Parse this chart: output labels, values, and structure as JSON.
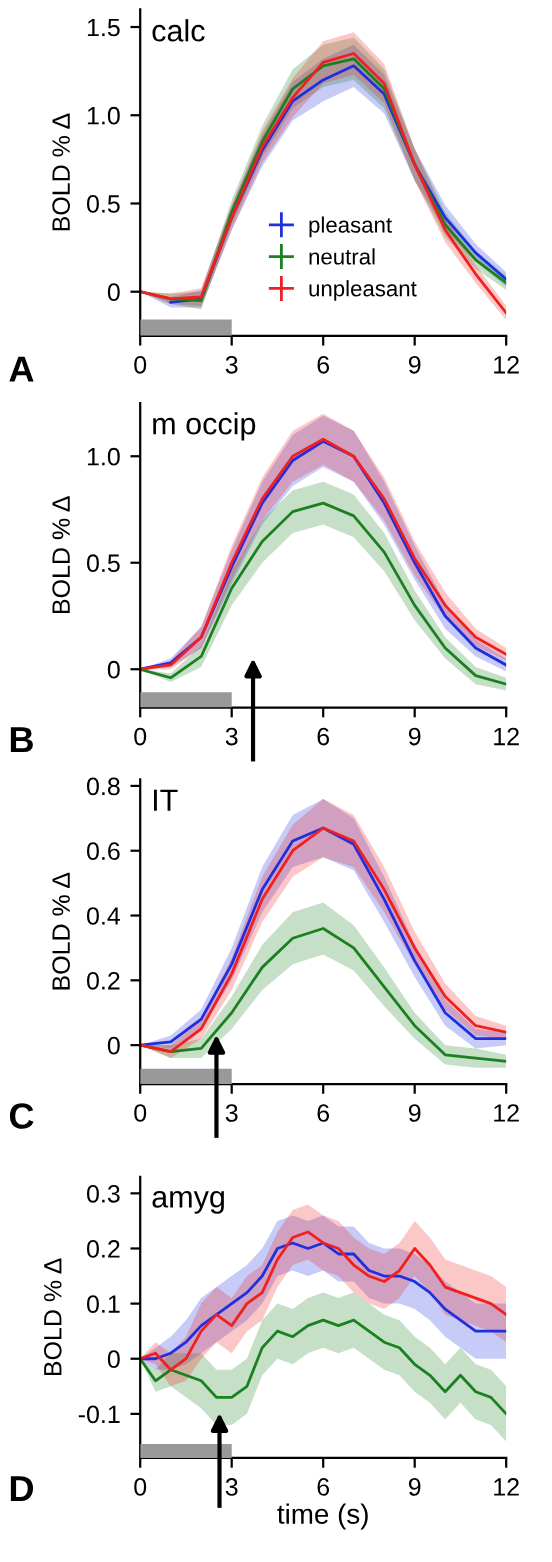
{
  "chart_data": [
    {
      "type": "line",
      "title": "calc",
      "ylabel": "BOLD % Δ",
      "annotations": [
        "A"
      ],
      "legend": "lower right",
      "grid": false,
      "xlim": [
        0,
        12
      ],
      "xticks": [
        0,
        3,
        6,
        9,
        12
      ],
      "ylim": [
        -0.25,
        1.6
      ],
      "yticks": [
        0,
        0.5,
        {
          "value": 1,
          "label": "1.0"
        },
        1.5
      ],
      "tick_labels": "xy",
      "bands": [
        {
          "axis": "x",
          "from": 0,
          "to": 3,
          "color": "#999999"
        }
      ],
      "series": [
        {
          "name": "pleasant",
          "color": "#1f2fe0",
          "x": [
            0,
            1,
            2,
            3,
            4,
            5,
            6,
            7,
            8,
            9,
            10,
            11,
            12
          ],
          "values": [
            null,
            -0.06,
            -0.04,
            0.42,
            0.8,
            1.08,
            1.2,
            1.28,
            1.12,
            0.72,
            0.42,
            0.22,
            0.07
          ],
          "lower": [
            0,
            -0.09,
            -0.09,
            0.35,
            0.71,
            0.97,
            1.08,
            1.16,
            1.01,
            0.63,
            0.35,
            0.17,
            0.03
          ],
          "upper": [
            0,
            -0.03,
            0.01,
            0.49,
            0.89,
            1.19,
            1.32,
            1.4,
            1.23,
            0.81,
            0.49,
            0.27,
            0.11
          ]
        },
        {
          "name": "neutral",
          "color": "#1a8020",
          "x": [
            0,
            1,
            2,
            3,
            4,
            5,
            6,
            7,
            8,
            9,
            10,
            11,
            12
          ],
          "values": [
            0,
            -0.04,
            -0.05,
            0.45,
            0.85,
            1.15,
            1.28,
            1.32,
            1.15,
            0.72,
            0.38,
            0.18,
            0.05
          ],
          "lower": [
            0,
            -0.07,
            -0.1,
            0.38,
            0.76,
            1.04,
            1.16,
            1.2,
            1.04,
            0.63,
            0.31,
            0.13,
            0.01
          ],
          "upper": [
            0,
            -0.01,
            0,
            0.52,
            0.94,
            1.26,
            1.4,
            1.44,
            1.26,
            0.81,
            0.45,
            0.23,
            0.09
          ]
        },
        {
          "name": "unpleasant",
          "color": "#f02020",
          "x": [
            0,
            1,
            2,
            3,
            4,
            5,
            6,
            7,
            8,
            9,
            10,
            11,
            12
          ],
          "values": [
            0,
            -0.04,
            -0.03,
            0.42,
            0.82,
            1.1,
            1.3,
            1.35,
            1.18,
            0.72,
            0.35,
            0.1,
            -0.12
          ],
          "lower": [
            0,
            -0.07,
            -0.08,
            0.35,
            0.73,
            0.99,
            1.18,
            1.23,
            1.07,
            0.63,
            0.28,
            0.05,
            -0.16
          ],
          "upper": [
            0,
            -0.01,
            0.02,
            0.49,
            0.91,
            1.21,
            1.42,
            1.47,
            1.29,
            0.81,
            0.42,
            0.15,
            -0.08
          ]
        }
      ]
    },
    {
      "type": "line",
      "title": "m occip",
      "ylabel": "BOLD % Δ",
      "annotations": [
        "B"
      ],
      "grid": false,
      "xlim": [
        0,
        12
      ],
      "xticks": [
        0,
        3,
        6,
        9,
        12
      ],
      "ylim": [
        -0.18,
        1.25
      ],
      "yticks": [
        0,
        0.5,
        {
          "value": 1,
          "label": "1.0"
        }
      ],
      "tick_labels": "xy",
      "bands": [
        {
          "axis": "x",
          "from": 0,
          "to": 3,
          "color": "#999999"
        }
      ],
      "ref_lines": [
        {
          "axis": "x",
          "value": 3.7,
          "color": "#000000"
        }
      ],
      "series": [
        {
          "color": "#1f2fe0",
          "x": [
            0,
            1,
            2,
            3,
            4,
            5,
            6,
            7,
            8,
            9,
            10,
            11,
            12
          ],
          "values": [
            0,
            0.03,
            0.15,
            0.48,
            0.78,
            0.98,
            1.07,
            1.0,
            0.78,
            0.5,
            0.25,
            0.1,
            0.02
          ],
          "lower": [
            0,
            0.01,
            0.1,
            0.4,
            0.68,
            0.86,
            0.95,
            0.88,
            0.68,
            0.42,
            0.19,
            0.06,
            -0.01
          ],
          "upper": [
            0,
            0.05,
            0.2,
            0.56,
            0.88,
            1.1,
            1.19,
            1.12,
            0.88,
            0.58,
            0.31,
            0.14,
            0.05
          ]
        },
        {
          "color": "#1a8020",
          "x": [
            0,
            1,
            2,
            3,
            4,
            5,
            6,
            7,
            8,
            9,
            10,
            11,
            12
          ],
          "values": [
            0,
            -0.04,
            0.06,
            0.38,
            0.6,
            0.74,
            0.78,
            0.72,
            0.55,
            0.3,
            0.1,
            -0.03,
            -0.07
          ],
          "lower": [
            0,
            -0.06,
            0.01,
            0.3,
            0.5,
            0.64,
            0.68,
            0.62,
            0.46,
            0.23,
            0.05,
            -0.07,
            -0.1
          ],
          "upper": [
            0,
            -0.02,
            0.11,
            0.46,
            0.7,
            0.84,
            0.88,
            0.82,
            0.64,
            0.37,
            0.15,
            0.01,
            -0.04
          ]
        },
        {
          "color": "#f02020",
          "x": [
            0,
            1,
            2,
            3,
            4,
            5,
            6,
            7,
            8,
            9,
            10,
            11,
            12
          ],
          "values": [
            0,
            0.02,
            0.15,
            0.5,
            0.8,
            1.0,
            1.08,
            1.0,
            0.8,
            0.52,
            0.3,
            0.15,
            0.07
          ],
          "lower": [
            0,
            0,
            0.1,
            0.42,
            0.7,
            0.88,
            0.96,
            0.88,
            0.7,
            0.44,
            0.24,
            0.11,
            0.04
          ],
          "upper": [
            0,
            0.04,
            0.2,
            0.58,
            0.9,
            1.12,
            1.2,
            1.12,
            0.9,
            0.6,
            0.36,
            0.19,
            0.1
          ]
        }
      ]
    },
    {
      "type": "line",
      "title": "IT",
      "ylabel": "BOLD % Δ",
      "annotations": [
        "C"
      ],
      "grid": false,
      "xlim": [
        0,
        12
      ],
      "xticks": [
        0,
        3,
        6,
        9,
        12
      ],
      "ylim": [
        -0.12,
        0.82
      ],
      "yticks": [
        0,
        0.2,
        0.4,
        0.6,
        0.8
      ],
      "tick_labels": "xy",
      "bands": [
        {
          "axis": "x",
          "from": 0,
          "to": 3,
          "color": "#999999"
        }
      ],
      "ref_lines": [
        {
          "axis": "x",
          "value": 2.5,
          "color": "#000000"
        }
      ],
      "series": [
        {
          "color": "#1f2fe0",
          "x": [
            0,
            1,
            2,
            3,
            4,
            5,
            6,
            7,
            8,
            9,
            10,
            11,
            12
          ],
          "values": [
            0,
            0.01,
            0.08,
            0.25,
            0.48,
            0.63,
            0.67,
            0.62,
            0.45,
            0.26,
            0.1,
            0.02,
            0.02
          ],
          "lower": [
            0,
            -0.01,
            0.05,
            0.2,
            0.41,
            0.55,
            0.58,
            0.54,
            0.38,
            0.21,
            0.06,
            -0.01,
            0
          ],
          "upper": [
            0,
            0.03,
            0.11,
            0.3,
            0.55,
            0.71,
            0.76,
            0.7,
            0.52,
            0.31,
            0.14,
            0.05,
            0.04
          ]
        },
        {
          "color": "#1a8020",
          "x": [
            0,
            1,
            2,
            3,
            4,
            5,
            6,
            7,
            8,
            9,
            10,
            11,
            12
          ],
          "values": [
            0,
            -0.02,
            -0.01,
            0.1,
            0.24,
            0.33,
            0.36,
            0.3,
            0.18,
            0.06,
            -0.03,
            -0.04,
            -0.05
          ],
          "lower": [
            0,
            -0.04,
            -0.04,
            0.05,
            0.17,
            0.25,
            0.28,
            0.23,
            0.12,
            0.02,
            -0.06,
            -0.07,
            -0.07
          ],
          "upper": [
            0,
            0,
            0.02,
            0.15,
            0.31,
            0.41,
            0.44,
            0.37,
            0.24,
            0.1,
            0,
            -0.01,
            -0.03
          ]
        },
        {
          "color": "#f02020",
          "x": [
            0,
            1,
            2,
            3,
            4,
            5,
            6,
            7,
            8,
            9,
            10,
            11,
            12
          ],
          "values": [
            0,
            -0.02,
            0.05,
            0.22,
            0.45,
            0.6,
            0.67,
            0.63,
            0.48,
            0.3,
            0.15,
            0.06,
            0.04
          ],
          "lower": [
            0,
            -0.04,
            0.02,
            0.17,
            0.38,
            0.52,
            0.58,
            0.55,
            0.41,
            0.25,
            0.11,
            0.03,
            0.02
          ],
          "upper": [
            0,
            0,
            0.08,
            0.27,
            0.52,
            0.68,
            0.76,
            0.71,
            0.55,
            0.35,
            0.19,
            0.09,
            0.06
          ]
        }
      ]
    },
    {
      "type": "line",
      "title": "amyg",
      "ylabel": "BOLD % Δ",
      "xlabel": "time (s)",
      "annotations": [
        "D"
      ],
      "grid": false,
      "xlim": [
        0,
        12
      ],
      "xticks": [
        0,
        3,
        6,
        9,
        12
      ],
      "ylim": [
        -0.18,
        0.33
      ],
      "yticks": [
        -0.1,
        0,
        0.1,
        0.2,
        0.3
      ],
      "tick_labels": "xy",
      "bands": [
        {
          "axis": "x",
          "from": 0,
          "to": 3,
          "color": "#999999"
        }
      ],
      "ref_lines": [
        {
          "axis": "x",
          "value": 2.6,
          "color": "#000000"
        }
      ],
      "series": [
        {
          "color": "#1f2fe0",
          "x": [
            0,
            0.5,
            1,
            1.5,
            2,
            2.5,
            3,
            3.5,
            4,
            4.5,
            5,
            5.5,
            6,
            6.5,
            7,
            7.5,
            8,
            8.5,
            9,
            9.5,
            10,
            10.5,
            11,
            11.5,
            12
          ],
          "values": [
            0,
            0.0,
            0.01,
            0.03,
            0.06,
            0.08,
            0.1,
            0.12,
            0.15,
            0.2,
            0.21,
            0.2,
            0.21,
            0.19,
            0.19,
            0.16,
            0.15,
            0.15,
            0.14,
            0.12,
            0.09,
            0.07,
            0.05,
            0.05,
            0.05
          ],
          "lower": [
            0,
            -0.02,
            -0.02,
            -0.01,
            0.01,
            0.03,
            0.05,
            0.07,
            0.1,
            0.15,
            0.16,
            0.15,
            0.16,
            0.14,
            0.14,
            0.11,
            0.1,
            0.1,
            0.09,
            0.07,
            0.04,
            0.02,
            0,
            0,
            0
          ],
          "upper": [
            0,
            0.02,
            0.04,
            0.07,
            0.11,
            0.13,
            0.15,
            0.17,
            0.2,
            0.25,
            0.26,
            0.25,
            0.26,
            0.24,
            0.24,
            0.21,
            0.2,
            0.2,
            0.19,
            0.17,
            0.14,
            0.12,
            0.1,
            0.1,
            0.1
          ]
        },
        {
          "color": "#1a8020",
          "x": [
            0,
            0.5,
            1,
            1.5,
            2,
            2.5,
            3,
            3.5,
            4,
            4.5,
            5,
            5.5,
            6,
            6.5,
            7,
            7.5,
            8,
            8.5,
            9,
            9.5,
            10,
            10.5,
            11,
            11.5,
            12
          ],
          "values": [
            0,
            -0.04,
            -0.02,
            -0.03,
            -0.04,
            -0.07,
            -0.07,
            -0.05,
            0.02,
            0.05,
            0.04,
            0.06,
            0.07,
            0.06,
            0.07,
            0.05,
            0.03,
            0.02,
            -0.01,
            -0.03,
            -0.06,
            -0.03,
            -0.06,
            -0.07,
            -0.1
          ],
          "lower": [
            0,
            -0.06,
            -0.05,
            -0.07,
            -0.09,
            -0.12,
            -0.12,
            -0.1,
            -0.03,
            0,
            -0.01,
            0.01,
            0.02,
            0.01,
            0.02,
            0,
            -0.02,
            -0.03,
            -0.06,
            -0.08,
            -0.11,
            -0.08,
            -0.11,
            -0.12,
            -0.15
          ],
          "upper": [
            0,
            -0.02,
            0.01,
            0.01,
            0.01,
            -0.02,
            -0.02,
            0,
            0.07,
            0.1,
            0.09,
            0.11,
            0.12,
            0.11,
            0.12,
            0.1,
            0.08,
            0.07,
            0.04,
            0.02,
            -0.01,
            0.02,
            -0.01,
            -0.02,
            -0.05
          ]
        },
        {
          "color": "#f02020",
          "x": [
            0,
            0.5,
            1,
            1.5,
            2,
            2.5,
            3,
            3.5,
            4,
            4.5,
            5,
            5.5,
            6,
            6.5,
            7,
            7.5,
            8,
            8.5,
            9,
            9.5,
            10,
            10.5,
            11,
            11.5,
            12
          ],
          "values": [
            0,
            0.01,
            -0.02,
            0.0,
            0.05,
            0.08,
            0.06,
            0.1,
            0.12,
            0.18,
            0.22,
            0.23,
            0.21,
            0.2,
            0.17,
            0.15,
            0.14,
            0.16,
            0.2,
            0.17,
            0.13,
            0.12,
            0.11,
            0.1,
            0.08
          ],
          "lower": [
            0,
            -0.01,
            -0.05,
            -0.04,
            0,
            0.03,
            0.01,
            0.05,
            0.07,
            0.13,
            0.17,
            0.18,
            0.16,
            0.15,
            0.12,
            0.1,
            0.09,
            0.11,
            0.15,
            0.12,
            0.08,
            0.07,
            0.06,
            0.05,
            0.03
          ],
          "upper": [
            0,
            0.03,
            0.01,
            0.04,
            0.1,
            0.13,
            0.11,
            0.15,
            0.17,
            0.23,
            0.27,
            0.28,
            0.26,
            0.25,
            0.22,
            0.2,
            0.19,
            0.21,
            0.25,
            0.22,
            0.18,
            0.17,
            0.16,
            0.15,
            0.13
          ]
        }
      ]
    }
  ]
}
